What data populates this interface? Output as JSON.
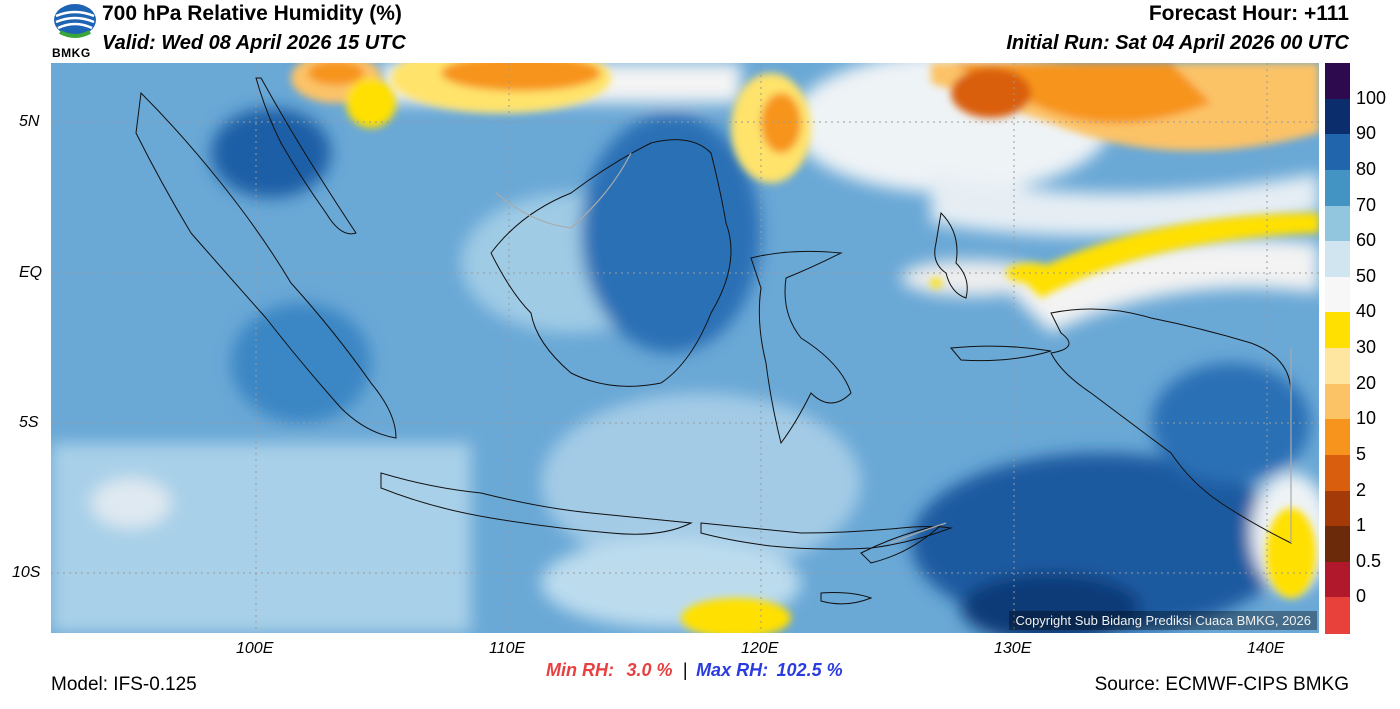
{
  "header": {
    "title": "700 hPa Relative Humidity (%)",
    "valid": "Valid: Wed 08 April 2026 15 UTC",
    "forecast_hour": "Forecast Hour: +111",
    "initial_run": "Initial Run: Sat 04 April 2026 00 UTC",
    "logo_text": "BMKG"
  },
  "map": {
    "lat_labels": [
      "5N",
      "EQ",
      "5S",
      "10S"
    ],
    "lon_labels": [
      "100E",
      "110E",
      "120E",
      "130E",
      "140E"
    ],
    "copyright": "Copyright Sub Bidang Prediksi Cuaca BMKG, 2026"
  },
  "colorbar": {
    "labels": [
      "100",
      "90",
      "80",
      "70",
      "60",
      "50",
      "40",
      "30",
      "20",
      "10",
      "5",
      "2",
      "1",
      "0.5",
      "0"
    ],
    "colors": [
      "#2d0a4e",
      "#0b2d6b",
      "#2166ac",
      "#4393c3",
      "#92c5de",
      "#d1e5f0",
      "#f7f7f7",
      "#ffe000",
      "#ffe6a0",
      "#fcc266",
      "#f7941d",
      "#d95f0e",
      "#a33a08",
      "#6b2a0a",
      "#b2182b",
      "#e8403a"
    ]
  },
  "footer": {
    "model": "Model: IFS-0.125",
    "min_label": "Min RH:",
    "min_value": "3.0 %",
    "separator": "|",
    "max_label": "Max RH:",
    "max_value": "102.5 %",
    "source": "Source: ECMWF-CIPS BMKG"
  }
}
